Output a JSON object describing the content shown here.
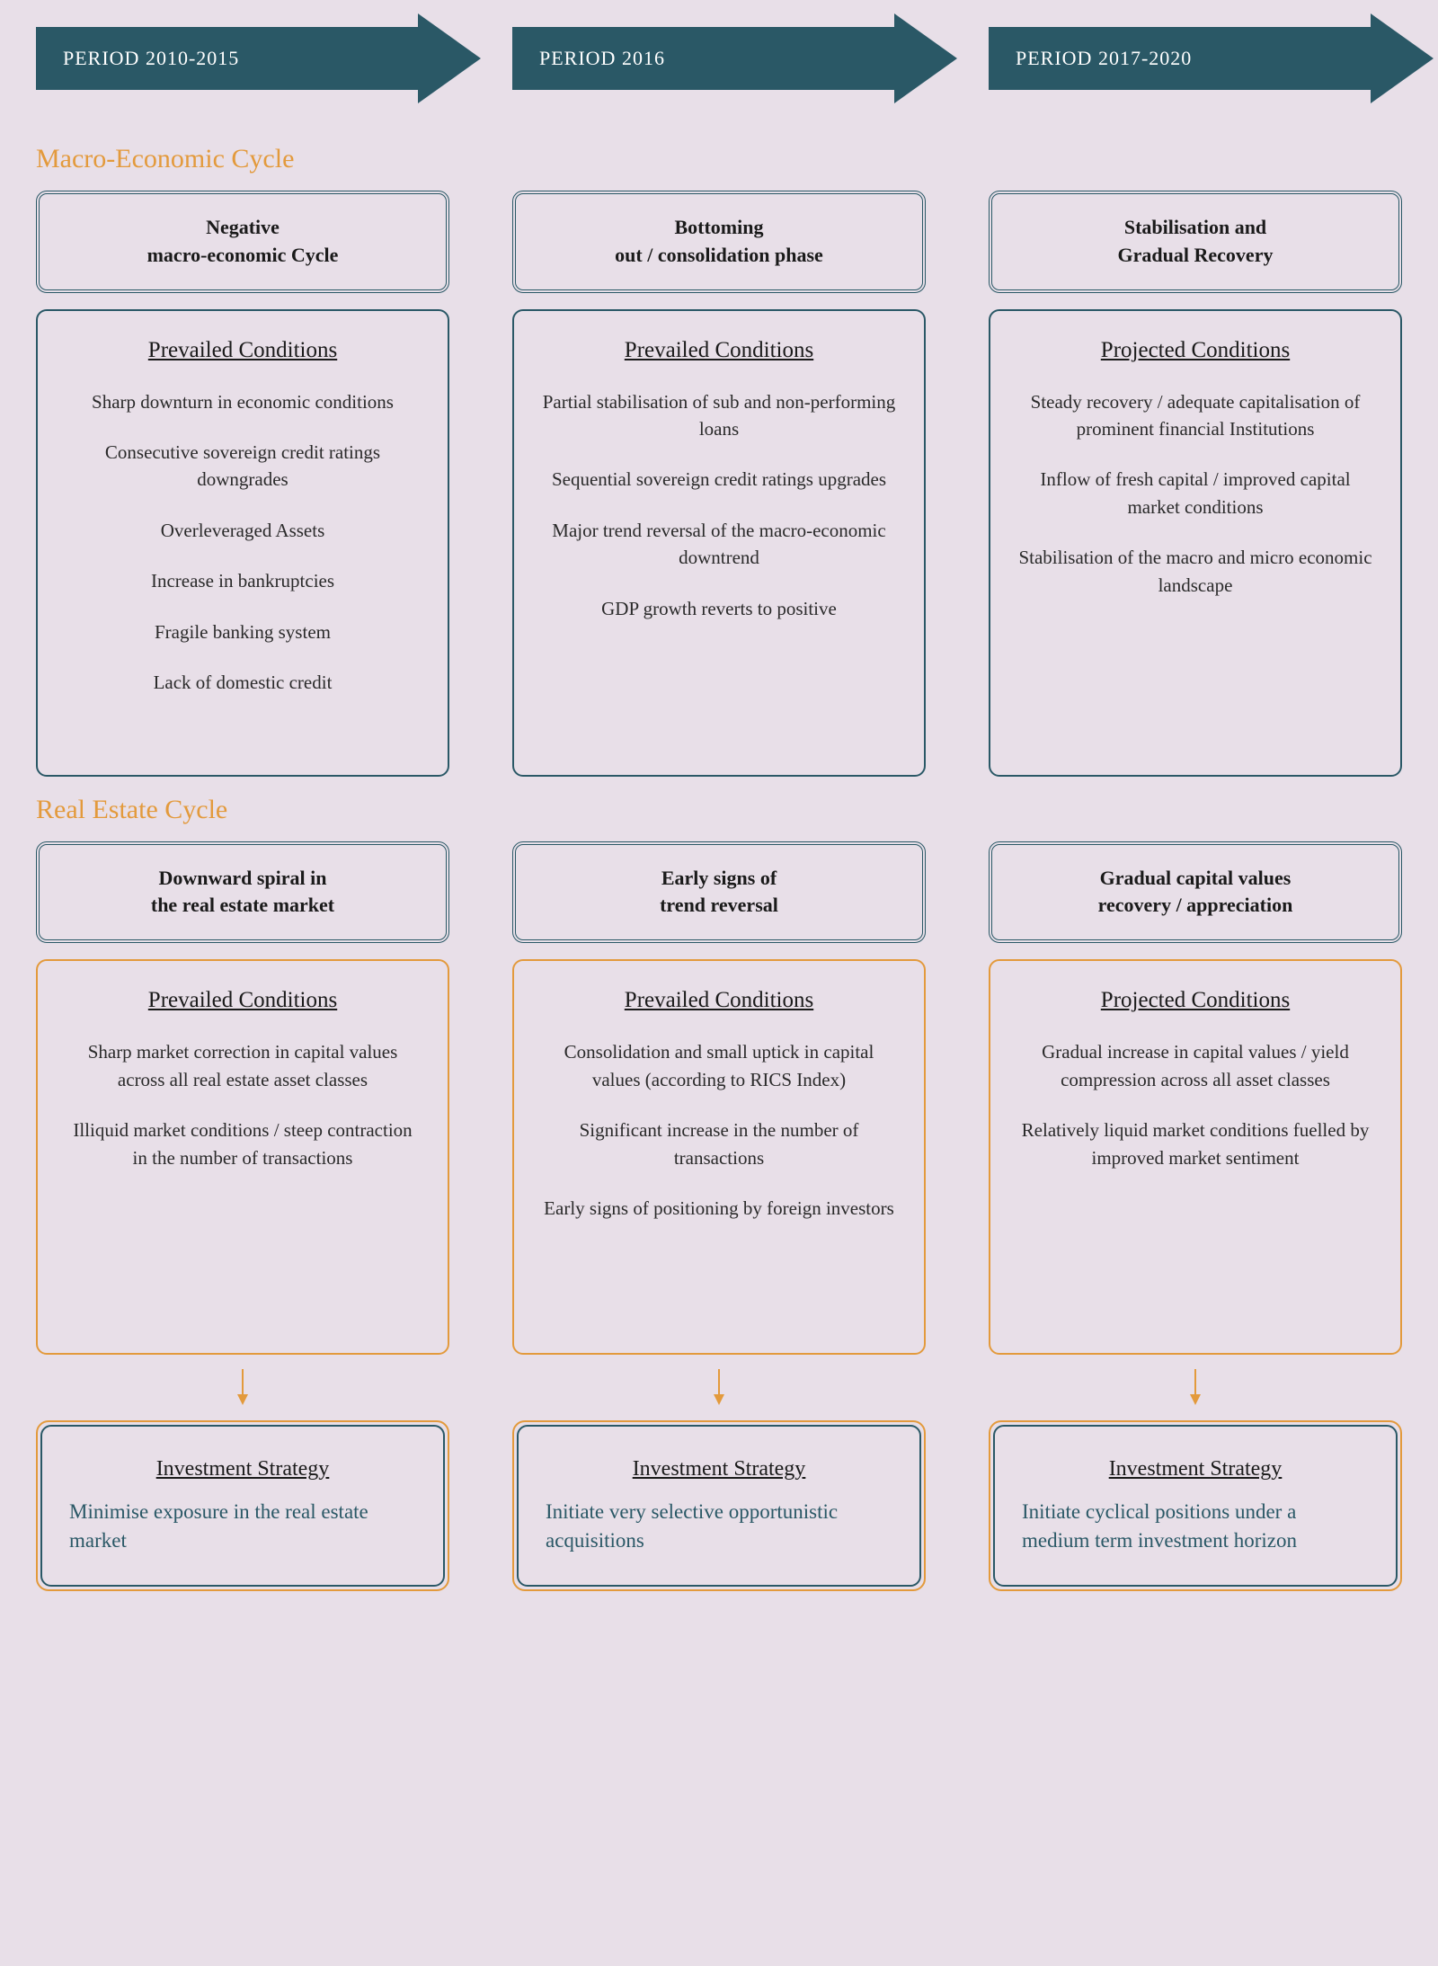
{
  "colors": {
    "background": "#e8dfe8",
    "primary_blue": "#2a5866",
    "accent_orange": "#e39a3c",
    "text_dark": "#1a1a1a",
    "text_body": "#2a2a2a"
  },
  "section_titles": {
    "macro": "Macro-Economic Cycle",
    "real_estate": "Real Estate Cycle"
  },
  "periods": [
    {
      "label": "PERIOD 2010-2015",
      "macro_header": "Negative\nmacro-economic Cycle",
      "macro_cond_title": "Prevailed Conditions",
      "macro_conditions": [
        "Sharp downturn in economic conditions",
        "Consecutive sovereign credit ratings downgrades",
        "Overleveraged Assets",
        "Increase in bankruptcies",
        "Fragile banking system",
        "Lack of domestic credit"
      ],
      "re_header": "Downward spiral in\nthe real estate market",
      "re_cond_title": "Prevailed Conditions",
      "re_conditions": [
        "Sharp market correction in capital values across all real estate asset classes",
        "Illiquid market conditions / steep contraction in the number of transactions"
      ],
      "strategy_title": "Investment Strategy",
      "strategy_text": "Minimise exposure in the real estate market"
    },
    {
      "label": "PERIOD 2016",
      "macro_header": "Bottoming\nout / consolidation phase",
      "macro_cond_title": "Prevailed Conditions",
      "macro_conditions": [
        "Partial stabilisation of sub and non-performing loans",
        "Sequential sovereign credit ratings upgrades",
        "Major trend reversal of the macro-economic downtrend",
        "GDP growth reverts to positive"
      ],
      "re_header": "Early signs of\ntrend reversal",
      "re_cond_title": "Prevailed Conditions",
      "re_conditions": [
        "Consolidation and small uptick in capital values (according to RICS Index)",
        "Significant increase in the number of transactions",
        "Early signs of positioning by foreign investors"
      ],
      "strategy_title": "Investment Strategy",
      "strategy_text": "Initiate very selective opportunistic acquisitions"
    },
    {
      "label": "PERIOD 2017-2020",
      "macro_header": "Stabilisation and\nGradual Recovery",
      "macro_cond_title": "Projected Conditions",
      "macro_conditions": [
        "Steady recovery / adequate capitalisation  of prominent financial Institutions",
        "Inflow of fresh capital / improved capital market conditions",
        "Stabilisation of the macro and micro economic landscape"
      ],
      "re_header": "Gradual capital values\nrecovery / appreciation",
      "re_cond_title": "Projected Conditions",
      "re_conditions": [
        "Gradual increase in capital values / yield compression across all asset classes",
        "Relatively liquid market conditions fuelled by improved market sentiment"
      ],
      "strategy_title": "Investment Strategy",
      "strategy_text": "Initiate cyclical positions under a medium term investment horizon"
    }
  ]
}
